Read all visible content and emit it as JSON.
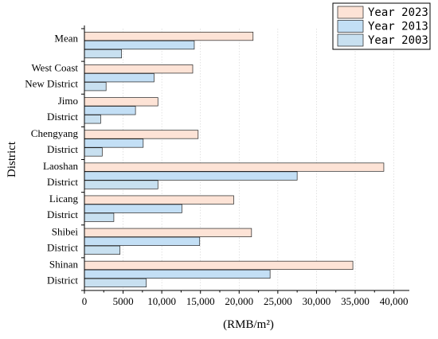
{
  "chart_data": {
    "type": "bar",
    "orientation": "horizontal",
    "ylabel": "District",
    "xlabel": "(RMB/m²)",
    "xlim": [
      0,
      42000
    ],
    "xticks": [
      0,
      5000,
      10000,
      15000,
      20000,
      25000,
      30000,
      35000,
      40000
    ],
    "xtick_labels": [
      "0",
      "5000",
      "10,000",
      "15,000",
      "20,000",
      "25,000",
      "30,000",
      "35,000",
      "40,000"
    ],
    "grid": "dotted vertical",
    "legend_position": "top-right",
    "categories": [
      [
        "Mean"
      ],
      [
        "West Coast",
        "New District"
      ],
      [
        "Jimo",
        "District"
      ],
      [
        "Chengyang",
        "District"
      ],
      [
        "Laoshan",
        "District"
      ],
      [
        "Licang",
        "District"
      ],
      [
        "Shibei",
        "District"
      ],
      [
        "Shinan",
        "District"
      ]
    ],
    "series": [
      {
        "name": "Year 2023",
        "color": "#fde3d6",
        "values": [
          21800,
          14000,
          9500,
          14700,
          38700,
          19300,
          21600,
          34700
        ]
      },
      {
        "name": "Year 2013",
        "color": "#c3dff5",
        "values": [
          14200,
          9000,
          6600,
          7600,
          27500,
          12600,
          14900,
          24000
        ]
      },
      {
        "name": "Year 2003",
        "color": "#c8e0f0",
        "values": [
          4800,
          2800,
          2100,
          2300,
          9500,
          3800,
          4600,
          8000
        ]
      }
    ]
  }
}
